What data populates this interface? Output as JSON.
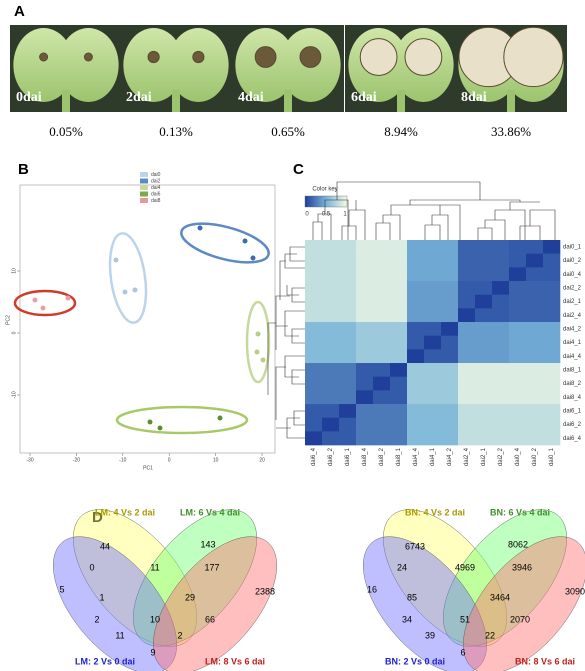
{
  "panels": {
    "a": {
      "label": "A",
      "photos": [
        {
          "label": "0dai",
          "percent": "0.05%"
        },
        {
          "label": "2dai",
          "percent": "0.13%"
        },
        {
          "label": "4dai",
          "percent": "0.65%"
        },
        {
          "label": "6dai",
          "percent": "8.94%"
        },
        {
          "label": "8dai",
          "percent": "33.86%"
        }
      ]
    },
    "b": {
      "label": "B",
      "legend": [
        "dai0",
        "dai2",
        "dai4",
        "dai6",
        "dai8"
      ],
      "x_ticks": [
        "-30",
        "-20",
        "-10",
        "0",
        "10",
        "20"
      ],
      "y_ticks": [
        "10",
        "0",
        "-10"
      ],
      "x_axis": "PC1",
      "y_axis": "PC2"
    },
    "c": {
      "label": "C",
      "color_key": "Color key",
      "key_ticks": [
        "0",
        "0.5",
        "1"
      ],
      "rows": [
        "dai0_1",
        "dai0_2",
        "dai0_4",
        "dai2_2",
        "dai2_1",
        "dai2_4",
        "dai4_2",
        "dai4_1",
        "dai4_4",
        "dai8_1",
        "dai8_2",
        "dai8_4",
        "dai6_1",
        "dai6_2",
        "dai6_4"
      ],
      "columns": [
        "dai6_4",
        "dai6_2",
        "dai6_1",
        "dai8_4",
        "dai8_2",
        "dai8_1",
        "dai4_4",
        "dai4_1",
        "dai4_2",
        "dai2_4",
        "dai2_1",
        "dai2_2",
        "dai0_4",
        "dai0_2",
        "dai0_1"
      ]
    },
    "d": {
      "label": "D",
      "venns": [
        {
          "sets": [
            "LM: 4 Vs 2 dai",
            "LM: 6 Vs 4 dai",
            "LM: 2 Vs 0 dai",
            "LM: 8 Vs 6 dai"
          ],
          "counts": [
            44,
            143,
            5,
            0,
            11,
            177,
            2388,
            1,
            29,
            2,
            10,
            66,
            11,
            2,
            9
          ]
        },
        {
          "sets": [
            "BN: 4 Vs 2 dai",
            "BN: 6 Vs 4 dai",
            "BN: 2 Vs 0 dai",
            "BN: 8 Vs 6 dai"
          ],
          "counts": [
            6743,
            8062,
            16,
            24,
            4969,
            3946,
            3090,
            85,
            3464,
            34,
            51,
            2070,
            39,
            22,
            6
          ]
        }
      ]
    }
  }
}
